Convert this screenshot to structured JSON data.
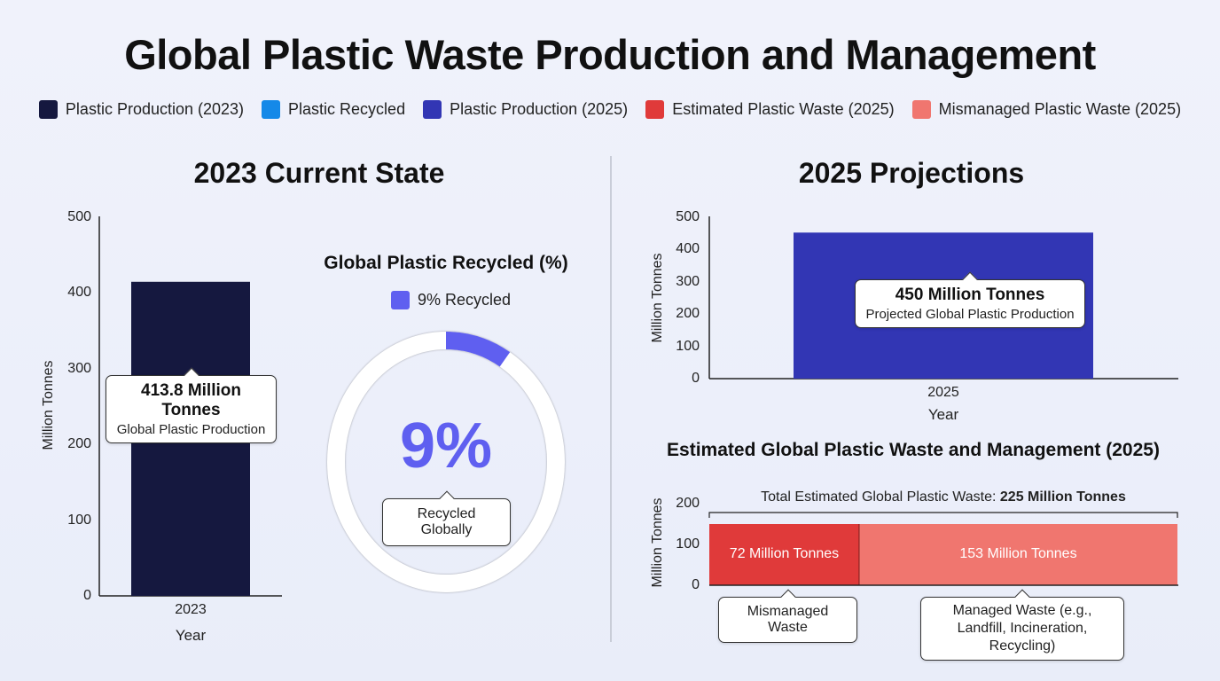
{
  "title": "Global Plastic Waste Production and Management",
  "legend": [
    {
      "label": "Plastic Production (2023)",
      "color": "#15183f"
    },
    {
      "label": "Plastic Recycled",
      "color": "#1589e8"
    },
    {
      "label": "Plastic Production (2025)",
      "color": "#3236b4"
    },
    {
      "label": "Estimated Plastic Waste (2025)",
      "color": "#e03a3a"
    },
    {
      "label": "Mismanaged Plastic Waste (2025)",
      "color": "#f0766f"
    }
  ],
  "left_section_title": "2023 Current State",
  "right_section_title": "2025 Projections",
  "chart_data": [
    {
      "type": "bar",
      "title": "",
      "categories": [
        "2023"
      ],
      "values": [
        413.8
      ],
      "xlabel": "Year",
      "ylabel": "Million Tonnes",
      "ylim": [
        0,
        500
      ],
      "yticks": [
        "0",
        "100",
        "200",
        "300",
        "400",
        "500"
      ],
      "color": "#15183f",
      "annotation": {
        "value": "413.8 Million Tonnes",
        "label": "Global Plastic Production"
      }
    },
    {
      "type": "pie",
      "title": "Global Plastic Recycled (%)",
      "legend": "9% Recycled",
      "values": [
        9,
        91
      ],
      "center_text": "9%",
      "color": "#5f5ff0",
      "annotation": "Recycled Globally"
    },
    {
      "type": "bar",
      "title": "",
      "categories": [
        "2025"
      ],
      "values": [
        450
      ],
      "xlabel": "Year",
      "ylabel": "Million Tonnes",
      "ylim": [
        0,
        500
      ],
      "yticks": [
        "0",
        "100",
        "200",
        "300",
        "400",
        "500"
      ],
      "color": "#3236b4",
      "annotation": {
        "value": "450 Million Tonnes",
        "label": "Projected Global Plastic Production"
      }
    },
    {
      "type": "bar",
      "title": "Estimated Global Plastic Waste and Management (2025)",
      "stacked": true,
      "ylabel": "Million Tonnes",
      "ylim": [
        0,
        200
      ],
      "yticks": [
        "0",
        "100",
        "200"
      ],
      "total_label_prefix": "Total Estimated Global Plastic Waste: ",
      "total_label_value": "225 Million Tonnes",
      "segments": [
        {
          "value": 72,
          "text": "72 Million Tonnes",
          "color": "#e03a3a",
          "annotation": "Mismanaged Waste"
        },
        {
          "value": 153,
          "text": "153 Million Tonnes",
          "color": "#f0766f",
          "annotation": "Managed Waste (e.g., Landfill, Incineration, Recycling)"
        }
      ]
    }
  ]
}
